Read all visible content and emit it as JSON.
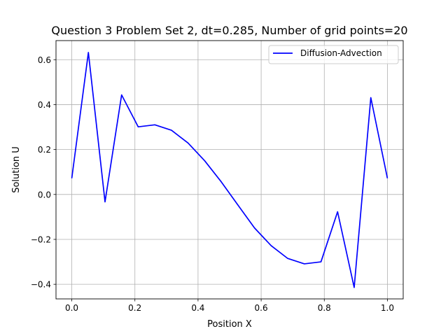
{
  "chart_data": {
    "type": "line",
    "title": "Question 3 Problem Set 2, dt=0.285, Number of grid points=20",
    "xlabel": "Position X",
    "ylabel": "Solution U",
    "xlim": [
      -0.05,
      1.05
    ],
    "ylim": [
      -0.465,
      0.685
    ],
    "grid": true,
    "legend_location": "upper right",
    "x_ticks": [
      0.0,
      0.2,
      0.4,
      0.6,
      0.8,
      1.0
    ],
    "x_tick_labels": [
      "0.0",
      "0.2",
      "0.4",
      "0.6",
      "0.8",
      "1.0"
    ],
    "y_ticks": [
      -0.4,
      -0.2,
      0.0,
      0.2,
      0.4,
      0.6
    ],
    "y_tick_labels": [
      "−0.4",
      "−0.2",
      "0.0",
      "0.2",
      "0.4",
      "0.6"
    ],
    "series": [
      {
        "name": "Diffusion-Advection",
        "color": "#0000ff",
        "x": [
          0.0,
          0.0526,
          0.1053,
          0.1579,
          0.2105,
          0.2632,
          0.3158,
          0.3684,
          0.4211,
          0.4737,
          0.5263,
          0.5789,
          0.6316,
          0.6842,
          0.7368,
          0.7895,
          0.8421,
          0.8947,
          0.9474,
          1.0
        ],
        "values": [
          0.072,
          0.632,
          -0.033,
          0.443,
          0.301,
          0.31,
          0.286,
          0.229,
          0.15,
          0.056,
          -0.047,
          -0.149,
          -0.228,
          -0.285,
          -0.309,
          -0.3,
          -0.077,
          -0.414,
          0.431,
          0.072
        ]
      }
    ]
  }
}
